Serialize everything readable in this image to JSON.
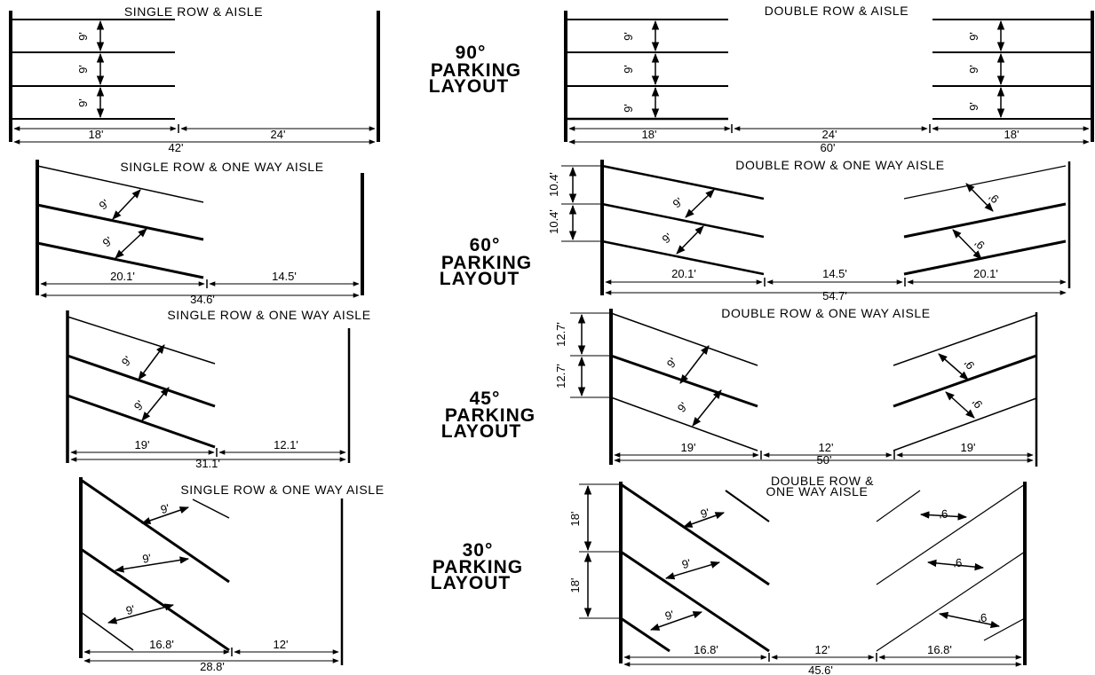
{
  "layouts": [
    {
      "heading": [
        "90°",
        "PARKING",
        "LAYOUT"
      ],
      "single": {
        "title": "SINGLE ROW & AISLE",
        "stall_widths": [
          "9'",
          "9'",
          "9'"
        ],
        "stall_depth": "18'",
        "aisle": "24'",
        "total": "42'"
      },
      "double": {
        "title": "DOUBLE ROW & AISLE",
        "stall_widths_left": [
          "9'",
          "9'",
          "9'"
        ],
        "stall_widths_right": [
          "9'",
          "9'",
          "9'"
        ],
        "stall_depth_left": "18'",
        "aisle": "24'",
        "stall_depth_right": "18'",
        "total": "60'"
      }
    },
    {
      "heading": [
        "60°",
        "PARKING",
        "LAYOUT"
      ],
      "single": {
        "title": "SINGLE ROW & ONE WAY AISLE",
        "stall_widths": [
          "9'",
          "9'"
        ],
        "stall_depth": "20.1'",
        "aisle": "14.5'",
        "total": "34.6'"
      },
      "double": {
        "title": "DOUBLE ROW & ONE WAY AISLE",
        "curb_lengths": [
          "10.4'",
          "10.4'"
        ],
        "stall_widths_left": [
          "9'",
          "9'"
        ],
        "stall_widths_right": [
          "9'",
          "9'"
        ],
        "stall_depth_left": "20.1'",
        "aisle": "14.5'",
        "stall_depth_right": "20.1'",
        "total": "54.7'"
      }
    },
    {
      "heading": [
        "45°",
        "PARKING",
        "LAYOUT"
      ],
      "single": {
        "title": "SINGLE ROW & ONE WAY AISLE",
        "stall_widths": [
          "9'",
          "9'"
        ],
        "stall_depth": "19'",
        "aisle": "12.1'",
        "total": "31.1'"
      },
      "double": {
        "title": "DOUBLE ROW & ONE WAY AISLE",
        "curb_lengths": [
          "12.7'",
          "12.7'"
        ],
        "stall_widths_left": [
          "9'",
          "9'"
        ],
        "stall_widths_right": [
          "9'",
          "9'"
        ],
        "stall_depth_left": "19'",
        "aisle": "12'",
        "stall_depth_right": "19'",
        "total": "50'"
      }
    },
    {
      "heading": [
        "30°",
        "PARKING",
        "LAYOUT"
      ],
      "single": {
        "title": "SINGLE ROW & ONE WAY AISLE",
        "stall_widths": [
          "9'",
          "9'",
          "9'"
        ],
        "stall_depth": "16.8'",
        "aisle": "12'",
        "total": "28.8'"
      },
      "double": {
        "title": [
          "DOUBLE ROW &",
          "ONE WAY AISLE"
        ],
        "curb_lengths": [
          "18'",
          "18'"
        ],
        "stall_widths_left": [
          "9'",
          "9'",
          "9'"
        ],
        "stall_widths_right": [
          "9'",
          "9'",
          "9'"
        ],
        "stall_depth_left": "16.8'",
        "aisle": "12'",
        "stall_depth_right": "16.8'",
        "total": "45.6'"
      }
    }
  ]
}
